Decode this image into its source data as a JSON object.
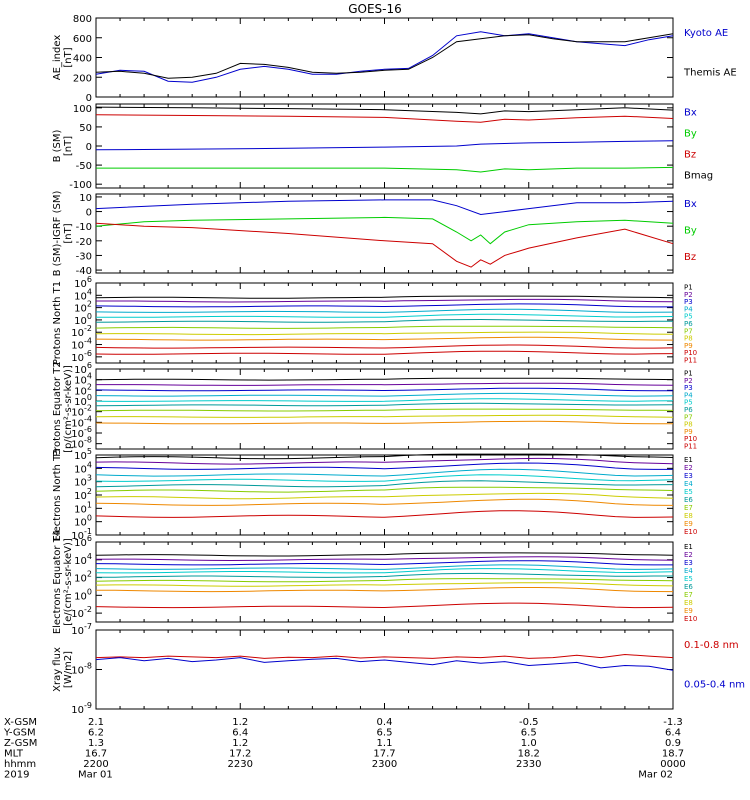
{
  "title": "GOES-16",
  "colors": {
    "black": "#000000",
    "blue": "#0000cc",
    "green": "#00cc00",
    "red": "#cc0000",
    "purple": "#660099",
    "cyan": "#00aacc",
    "teal": "#009999",
    "lime": "#88cc00",
    "yellow": "#cccc00",
    "orange": "#ee8800"
  },
  "chart_data": [
    {
      "type": "line",
      "ylabel": "AE_index [nT]",
      "ylim": [
        0,
        800
      ],
      "ticks": [
        0,
        200,
        400,
        600,
        800
      ],
      "tick_labels": [
        "0",
        "200",
        "400",
        "600",
        "800"
      ],
      "xlim": [
        0,
        120
      ],
      "series": [
        {
          "name": "Kyoto AE",
          "color": "#0000cc",
          "x": [
            0,
            5,
            10,
            15,
            20,
            25,
            30,
            35,
            40,
            45,
            50,
            55,
            60,
            65,
            70,
            75,
            80,
            85,
            90,
            95,
            100,
            105,
            110,
            115,
            120
          ],
          "values": [
            230,
            270,
            260,
            160,
            150,
            200,
            280,
            310,
            280,
            230,
            230,
            260,
            280,
            290,
            420,
            620,
            660,
            620,
            640,
            600,
            560,
            540,
            520,
            580,
            620
          ]
        },
        {
          "name": "Themis AE",
          "color": "#000000",
          "x": [
            0,
            5,
            10,
            15,
            20,
            25,
            30,
            35,
            40,
            45,
            50,
            55,
            60,
            65,
            70,
            75,
            80,
            85,
            90,
            95,
            100,
            105,
            110,
            115,
            120
          ],
          "values": [
            250,
            260,
            240,
            190,
            200,
            240,
            340,
            330,
            300,
            250,
            240,
            250,
            270,
            280,
            400,
            560,
            590,
            620,
            630,
            590,
            560,
            560,
            560,
            600,
            640
          ]
        }
      ]
    },
    {
      "type": "line",
      "ylabel": "B (SM) [nT]",
      "ylim": [
        -110,
        110
      ],
      "ticks": [
        -100,
        -50,
        0,
        50,
        100
      ],
      "tick_labels": [
        "-100",
        "-50",
        "0",
        "50",
        "100"
      ],
      "xlim": [
        0,
        120
      ],
      "series": [
        {
          "name": "Bx",
          "color": "#0000cc",
          "x": [
            0,
            20,
            40,
            60,
            75,
            80,
            90,
            100,
            110,
            120
          ],
          "values": [
            -10,
            -8,
            -6,
            -3,
            0,
            5,
            8,
            10,
            12,
            14
          ]
        },
        {
          "name": "By",
          "color": "#00cc00",
          "x": [
            0,
            20,
            40,
            60,
            75,
            80,
            85,
            90,
            100,
            110,
            120
          ],
          "values": [
            -58,
            -58,
            -58,
            -58,
            -62,
            -68,
            -60,
            -62,
            -58,
            -58,
            -56
          ]
        },
        {
          "name": "Bz",
          "color": "#cc0000",
          "x": [
            0,
            20,
            40,
            60,
            75,
            80,
            85,
            90,
            100,
            110,
            120
          ],
          "values": [
            82,
            80,
            78,
            75,
            65,
            62,
            70,
            68,
            74,
            78,
            72
          ]
        },
        {
          "name": "Bmag",
          "color": "#000000",
          "x": [
            0,
            20,
            40,
            60,
            75,
            80,
            85,
            90,
            100,
            110,
            120
          ],
          "values": [
            102,
            100,
            98,
            95,
            88,
            84,
            92,
            90,
            95,
            100,
            94
          ]
        }
      ]
    },
    {
      "type": "line",
      "ylabel": "B (SM)-IGRF (SM) [nT]",
      "ylim": [
        -42,
        12
      ],
      "ticks": [
        -40,
        -30,
        -20,
        -10,
        0,
        10
      ],
      "tick_labels": [
        "-40",
        "-30",
        "-20",
        "-10",
        "0",
        "10"
      ],
      "xlim": [
        0,
        120
      ],
      "series": [
        {
          "name": "Bx",
          "color": "#0000cc",
          "x": [
            0,
            20,
            40,
            60,
            70,
            75,
            80,
            85,
            90,
            100,
            110,
            120
          ],
          "values": [
            2,
            5,
            7,
            8,
            8,
            4,
            -2,
            0,
            2,
            6,
            6,
            7
          ]
        },
        {
          "name": "By",
          "color": "#00cc00",
          "x": [
            0,
            10,
            20,
            40,
            60,
            70,
            75,
            78,
            80,
            82,
            85,
            90,
            100,
            110,
            120
          ],
          "values": [
            -10,
            -7,
            -6,
            -5,
            -4,
            -5,
            -14,
            -20,
            -16,
            -22,
            -14,
            -9,
            -7,
            -6,
            -8
          ]
        },
        {
          "name": "Bz",
          "color": "#cc0000",
          "x": [
            0,
            10,
            20,
            40,
            60,
            70,
            75,
            78,
            80,
            82,
            85,
            88,
            90,
            100,
            110,
            120
          ],
          "values": [
            -8,
            -10,
            -11,
            -15,
            -20,
            -22,
            -34,
            -38,
            -33,
            -36,
            -30,
            -27,
            -25,
            -18,
            -12,
            -22
          ]
        }
      ]
    },
    {
      "type": "line",
      "ylabel": "Protons North T1",
      "log": true,
      "ylim": [
        -7,
        6
      ],
      "ticks": [
        -6,
        -4,
        -2,
        0,
        2,
        4,
        6
      ],
      "tick_labels": [
        "10-6",
        "10-4",
        "10-2",
        "100",
        "102",
        "104",
        "106"
      ],
      "xlim": [
        0,
        120
      ],
      "series": [
        {
          "name": "P1",
          "color": "#000000",
          "levels": [
            3.6
          ]
        },
        {
          "name": "P2",
          "color": "#660099",
          "levels": [
            3.0
          ]
        },
        {
          "name": "P3",
          "color": "#0000cc",
          "levels": [
            2.2
          ]
        },
        {
          "name": "P4",
          "color": "#00aacc",
          "levels": [
            1.3
          ]
        },
        {
          "name": "P5",
          "color": "#00cccc",
          "levels": [
            0.5
          ]
        },
        {
          "name": "P6",
          "color": "#009999",
          "levels": [
            -0.3
          ]
        },
        {
          "name": "P7",
          "color": "#88cc00",
          "levels": [
            -1.3
          ]
        },
        {
          "name": "P8",
          "color": "#cccc00",
          "levels": [
            -2.3
          ]
        },
        {
          "name": "P9",
          "color": "#ee8800",
          "levels": [
            -3.2
          ]
        },
        {
          "name": "P10",
          "color": "#cc0000",
          "levels": [
            -4.5
          ]
        },
        {
          "name": "P11",
          "color": "#cc0000",
          "levels": [
            -5.5
          ]
        }
      ]
    },
    {
      "type": "line",
      "ylabel": "Protons Equator T2 [p/(cm²-s-sr-keV)]",
      "log": true,
      "ylim": [
        -9,
        6
      ],
      "ticks": [
        -8,
        -6,
        -4,
        -2,
        0,
        2,
        4,
        6
      ],
      "tick_labels": [
        "10-8",
        "10-6",
        "10-4",
        "10-2",
        "100",
        "102",
        "104",
        "106"
      ],
      "xlim": [
        0,
        120
      ],
      "series": [
        {
          "name": "P1",
          "color": "#000000",
          "levels": [
            4.0
          ]
        },
        {
          "name": "P2",
          "color": "#660099",
          "levels": [
            3.0
          ]
        },
        {
          "name": "P3",
          "color": "#0000cc",
          "levels": [
            2.0
          ]
        },
        {
          "name": "P4",
          "color": "#00aacc",
          "levels": [
            1.0
          ]
        },
        {
          "name": "P5",
          "color": "#00cccc",
          "levels": [
            0.0
          ]
        },
        {
          "name": "P6",
          "color": "#009999",
          "levels": [
            -0.8
          ]
        },
        {
          "name": "P7",
          "color": "#88cc00",
          "levels": [
            -1.8
          ]
        },
        {
          "name": "P8",
          "color": "#cccc00",
          "levels": [
            -3.0
          ]
        },
        {
          "name": "P9",
          "color": "#ee8800",
          "levels": [
            -4.2
          ]
        },
        {
          "name": "P10",
          "color": "#cc0000",
          "levels": []
        },
        {
          "name": "P11",
          "color": "#cc0000",
          "levels": []
        }
      ]
    },
    {
      "type": "line",
      "ylabel": "Electrons North T3",
      "log": true,
      "ylim": [
        -1,
        5
      ],
      "ticks": [
        -1,
        0,
        1,
        2,
        3,
        4,
        5
      ],
      "tick_labels": [
        "10-1",
        "100",
        "101",
        "102",
        "103",
        "104",
        "105"
      ],
      "xlim": [
        0,
        120
      ],
      "series": [
        {
          "name": "E1",
          "color": "#000000",
          "levels": [
            4.8
          ]
        },
        {
          "name": "E2",
          "color": "#660099",
          "levels": [
            4.4
          ]
        },
        {
          "name": "E3",
          "color": "#0000cc",
          "levels": [
            4.0
          ]
        },
        {
          "name": "E4",
          "color": "#00aacc",
          "levels": [
            3.5
          ]
        },
        {
          "name": "E5",
          "color": "#00cccc",
          "levels": [
            3.1
          ]
        },
        {
          "name": "E6",
          "color": "#009999",
          "levels": [
            2.7
          ]
        },
        {
          "name": "E7",
          "color": "#88cc00",
          "levels": [
            2.3
          ]
        },
        {
          "name": "E8",
          "color": "#cccc00",
          "levels": [
            1.8
          ]
        },
        {
          "name": "E9",
          "color": "#ee8800",
          "levels": [
            1.3
          ]
        },
        {
          "name": "E10",
          "color": "#cc0000",
          "levels": [
            0.4
          ]
        }
      ]
    },
    {
      "type": "line",
      "ylabel": "Electrons Equator T4 [e/(cm²-s-sr-keV)]",
      "log": true,
      "ylim": [
        -3,
        6
      ],
      "ticks": [
        -2,
        0,
        2,
        4,
        6
      ],
      "tick_labels": [
        "10-2",
        "100",
        "102",
        "104",
        "106"
      ],
      "xlim": [
        0,
        120
      ],
      "series": [
        {
          "name": "E1",
          "color": "#000000",
          "levels": [
            4.5
          ]
        },
        {
          "name": "E2",
          "color": "#660099",
          "levels": [
            4.0
          ]
        },
        {
          "name": "E3",
          "color": "#0000cc",
          "levels": [
            3.5
          ]
        },
        {
          "name": "E4",
          "color": "#00aacc",
          "levels": [
            3.0
          ]
        },
        {
          "name": "E5",
          "color": "#00cccc",
          "levels": [
            2.6
          ]
        },
        {
          "name": "E6",
          "color": "#009999",
          "levels": [
            2.1
          ]
        },
        {
          "name": "E7",
          "color": "#88cc00",
          "levels": [
            1.6
          ]
        },
        {
          "name": "E8",
          "color": "#cccc00",
          "levels": [
            1.1
          ]
        },
        {
          "name": "E9",
          "color": "#ee8800",
          "levels": [
            0.5
          ]
        },
        {
          "name": "E10",
          "color": "#cc0000",
          "levels": [
            -1.3
          ]
        }
      ]
    },
    {
      "type": "line",
      "ylabel": "Xray flux [W/m2]",
      "log": true,
      "ylim": [
        -9,
        -7
      ],
      "ticks": [
        -9,
        -8,
        -7
      ],
      "tick_labels": [
        "10-9",
        "10-8",
        "10-7"
      ],
      "xlim": [
        0,
        120
      ],
      "series": [
        {
          "name": "0.1-0.8 nm",
          "color": "#cc0000",
          "x": [
            0,
            5,
            10,
            15,
            20,
            25,
            30,
            35,
            40,
            45,
            50,
            55,
            60,
            65,
            70,
            75,
            80,
            85,
            90,
            95,
            100,
            105,
            110,
            115,
            120
          ],
          "values": [
            -7.7,
            -7.68,
            -7.7,
            -7.66,
            -7.68,
            -7.7,
            -7.66,
            -7.72,
            -7.69,
            -7.7,
            -7.66,
            -7.71,
            -7.68,
            -7.7,
            -7.72,
            -7.68,
            -7.7,
            -7.66,
            -7.72,
            -7.7,
            -7.64,
            -7.7,
            -7.62,
            -7.66,
            -7.7
          ]
        },
        {
          "name": "0.05-0.4 nm",
          "color": "#0000cc",
          "x": [
            0,
            5,
            10,
            15,
            20,
            25,
            30,
            35,
            40,
            45,
            50,
            55,
            60,
            65,
            70,
            75,
            80,
            85,
            90,
            95,
            100,
            105,
            110,
            115,
            120
          ],
          "values": [
            -7.75,
            -7.7,
            -7.78,
            -7.72,
            -7.8,
            -7.76,
            -7.7,
            -7.82,
            -7.78,
            -7.74,
            -7.72,
            -7.8,
            -7.76,
            -7.82,
            -7.88,
            -7.78,
            -7.84,
            -7.8,
            -7.9,
            -7.86,
            -7.82,
            -7.96,
            -7.9,
            -7.92,
            -8.02
          ]
        }
      ]
    }
  ],
  "x_axis": {
    "row_labels": [
      "X-GSM",
      "Y-GSM",
      "Z-GSM",
      "MLT",
      "hhmm",
      "2019"
    ],
    "columns": [
      {
        "x": 0,
        "values": [
          "2.1",
          "6.2",
          "1.3",
          "16.7",
          "2200",
          "Mar 01"
        ]
      },
      {
        "x": 30,
        "values": [
          "1.2",
          "6.4",
          "1.2",
          "17.2",
          "2230",
          ""
        ]
      },
      {
        "x": 60,
        "values": [
          "0.4",
          "6.5",
          "1.1",
          "17.7",
          "2300",
          ""
        ]
      },
      {
        "x": 90,
        "values": [
          "-0.5",
          "6.5",
          "1.0",
          "18.2",
          "2330",
          ""
        ]
      },
      {
        "x": 120,
        "values": [
          "-1.3",
          "6.4",
          "0.9",
          "18.7",
          "0000",
          "Mar 02"
        ]
      }
    ]
  }
}
